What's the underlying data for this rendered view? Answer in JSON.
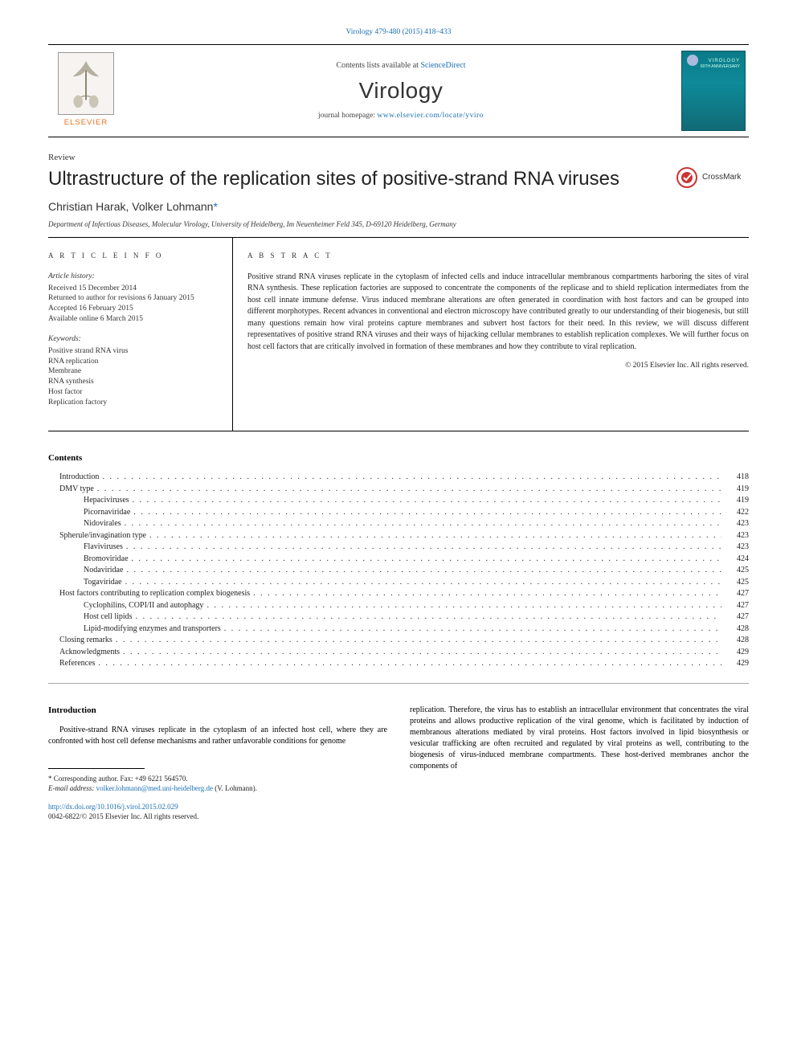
{
  "colors": {
    "link": "#1a6fb5",
    "elsevier_orange": "#e9711c",
    "text": "#222222",
    "rule": "#000000",
    "cover_bg_top": "#0a7a88",
    "cover_bg_bottom": "#116a76",
    "background": "#ffffff"
  },
  "typography": {
    "body_family": "Georgia, 'Times New Roman', serif",
    "sans_family": "Arial, sans-serif",
    "title_size_pt": 24,
    "journal_size_pt": 28,
    "body_size_pt": 10,
    "footnote_size_pt": 9
  },
  "header": {
    "volume_pages": "Virology 479-480 (2015) 418–433",
    "contents_prefix": "Contents lists available at ",
    "contents_link_text": "ScienceDirect",
    "journal_name": "Virology",
    "homepage_prefix": "journal homepage: ",
    "homepage_link_text": "www.elsevier.com/locate/yviro",
    "elsevier_word": "ELSEVIER",
    "cover_label": "VIROLOGY",
    "cover_sub": "60TH ANNIVERSARY"
  },
  "article": {
    "type": "Review",
    "title": "Ultrastructure of the replication sites of positive-strand RNA viruses",
    "authors_html": "Christian Harak, Volker Lohmann",
    "corr_marker": "*",
    "affiliation": "Department of Infectious Diseases, Molecular Virology, University of Heidelberg, Im Neuenheimer Feld 345, D-69120 Heidelberg, Germany",
    "crossmark_label": "CrossMark"
  },
  "article_info": {
    "heading": "A R T I C L E  I N F O",
    "history_label": "Article history:",
    "received": "Received 15 December 2014",
    "returned": "Returned to author for revisions 6 January 2015",
    "accepted": "Accepted 16 February 2015",
    "online": "Available online 6 March 2015",
    "keywords_label": "Keywords:",
    "keywords": [
      "Positive strand RNA virus",
      "RNA replication",
      "Membrane",
      "RNA synthesis",
      "Host factor",
      "Replication factory"
    ]
  },
  "abstract": {
    "heading": "A B S T R A C T",
    "body": "Positive strand RNA viruses replicate in the cytoplasm of infected cells and induce intracellular membranous compartments harboring the sites of viral RNA synthesis. These replication factories are supposed to concentrate the components of the replicase and to shield replication intermediates from the host cell innate immune defense. Virus induced membrane alterations are often generated in coordination with host factors and can be grouped into different morphotypes. Recent advances in conventional and electron microscopy have contributed greatly to our understanding of their biogenesis, but still many questions remain how viral proteins capture membranes and subvert host factors for their need. In this review, we will discuss different representatives of positive strand RNA viruses and their ways of hijacking cellular membranes to establish replication complexes. We will further focus on host cell factors that are critically involved in formation of these membranes and how they contribute to viral replication.",
    "copyright": "© 2015 Elsevier Inc. All rights reserved."
  },
  "contents": {
    "heading": "Contents",
    "items": [
      {
        "label": "Introduction",
        "page": "418",
        "level": 1
      },
      {
        "label": "DMV type",
        "page": "419",
        "level": 1
      },
      {
        "label": "Hepaciviruses",
        "page": "419",
        "level": 2
      },
      {
        "label": "Picornaviridae",
        "page": "422",
        "level": 2
      },
      {
        "label": "Nidovirales",
        "page": "423",
        "level": 2
      },
      {
        "label": "Spherule/invagination type",
        "page": "423",
        "level": 1
      },
      {
        "label": "Flaviviruses",
        "page": "423",
        "level": 2
      },
      {
        "label": "Bromoviridae",
        "page": "424",
        "level": 2
      },
      {
        "label": "Nodaviridae",
        "page": "425",
        "level": 2
      },
      {
        "label": "Togaviridae",
        "page": "425",
        "level": 2
      },
      {
        "label": "Host factors contributing to replication complex biogenesis",
        "page": "427",
        "level": 1
      },
      {
        "label": "Cyclophilins, COPI/II and autophagy",
        "page": "427",
        "level": 2
      },
      {
        "label": "Host cell lipids",
        "page": "427",
        "level": 2
      },
      {
        "label": "Lipid-modifying enzymes and transporters",
        "page": "428",
        "level": 2
      },
      {
        "label": "Closing remarks",
        "page": "428",
        "level": 1
      },
      {
        "label": "Acknowledgments",
        "page": "429",
        "level": 1
      },
      {
        "label": "References",
        "page": "429",
        "level": 1
      }
    ]
  },
  "body": {
    "intro_heading": "Introduction",
    "col1_p1": "Positive-strand RNA viruses replicate in the cytoplasm of an infected host cell, where they are confronted with host cell defense mechanisms and rather unfavorable conditions for genome",
    "col2_p1": "replication. Therefore, the virus has to establish an intracellular environment that concentrates the viral proteins and allows productive replication of the viral genome, which is facilitated by induction of membranous alterations mediated by viral proteins. Host factors involved in lipid biosynthesis or vesicular trafficking are often recruited and regulated by viral proteins as well, contributing to the biogenesis of virus-induced membrane compartments. These host-derived membranes anchor the components of"
  },
  "footnotes": {
    "corr_line": "* Corresponding author. Fax: +49 6221 564570.",
    "email_label": "E-mail address: ",
    "email": "volker.lohmann@med.uni-heidelberg.de",
    "email_paren": " (V. Lohmann).",
    "doi_link": "http://dx.doi.org/10.1016/j.virol.2015.02.029",
    "issn_line": "0042-6822/© 2015 Elsevier Inc. All rights reserved."
  }
}
